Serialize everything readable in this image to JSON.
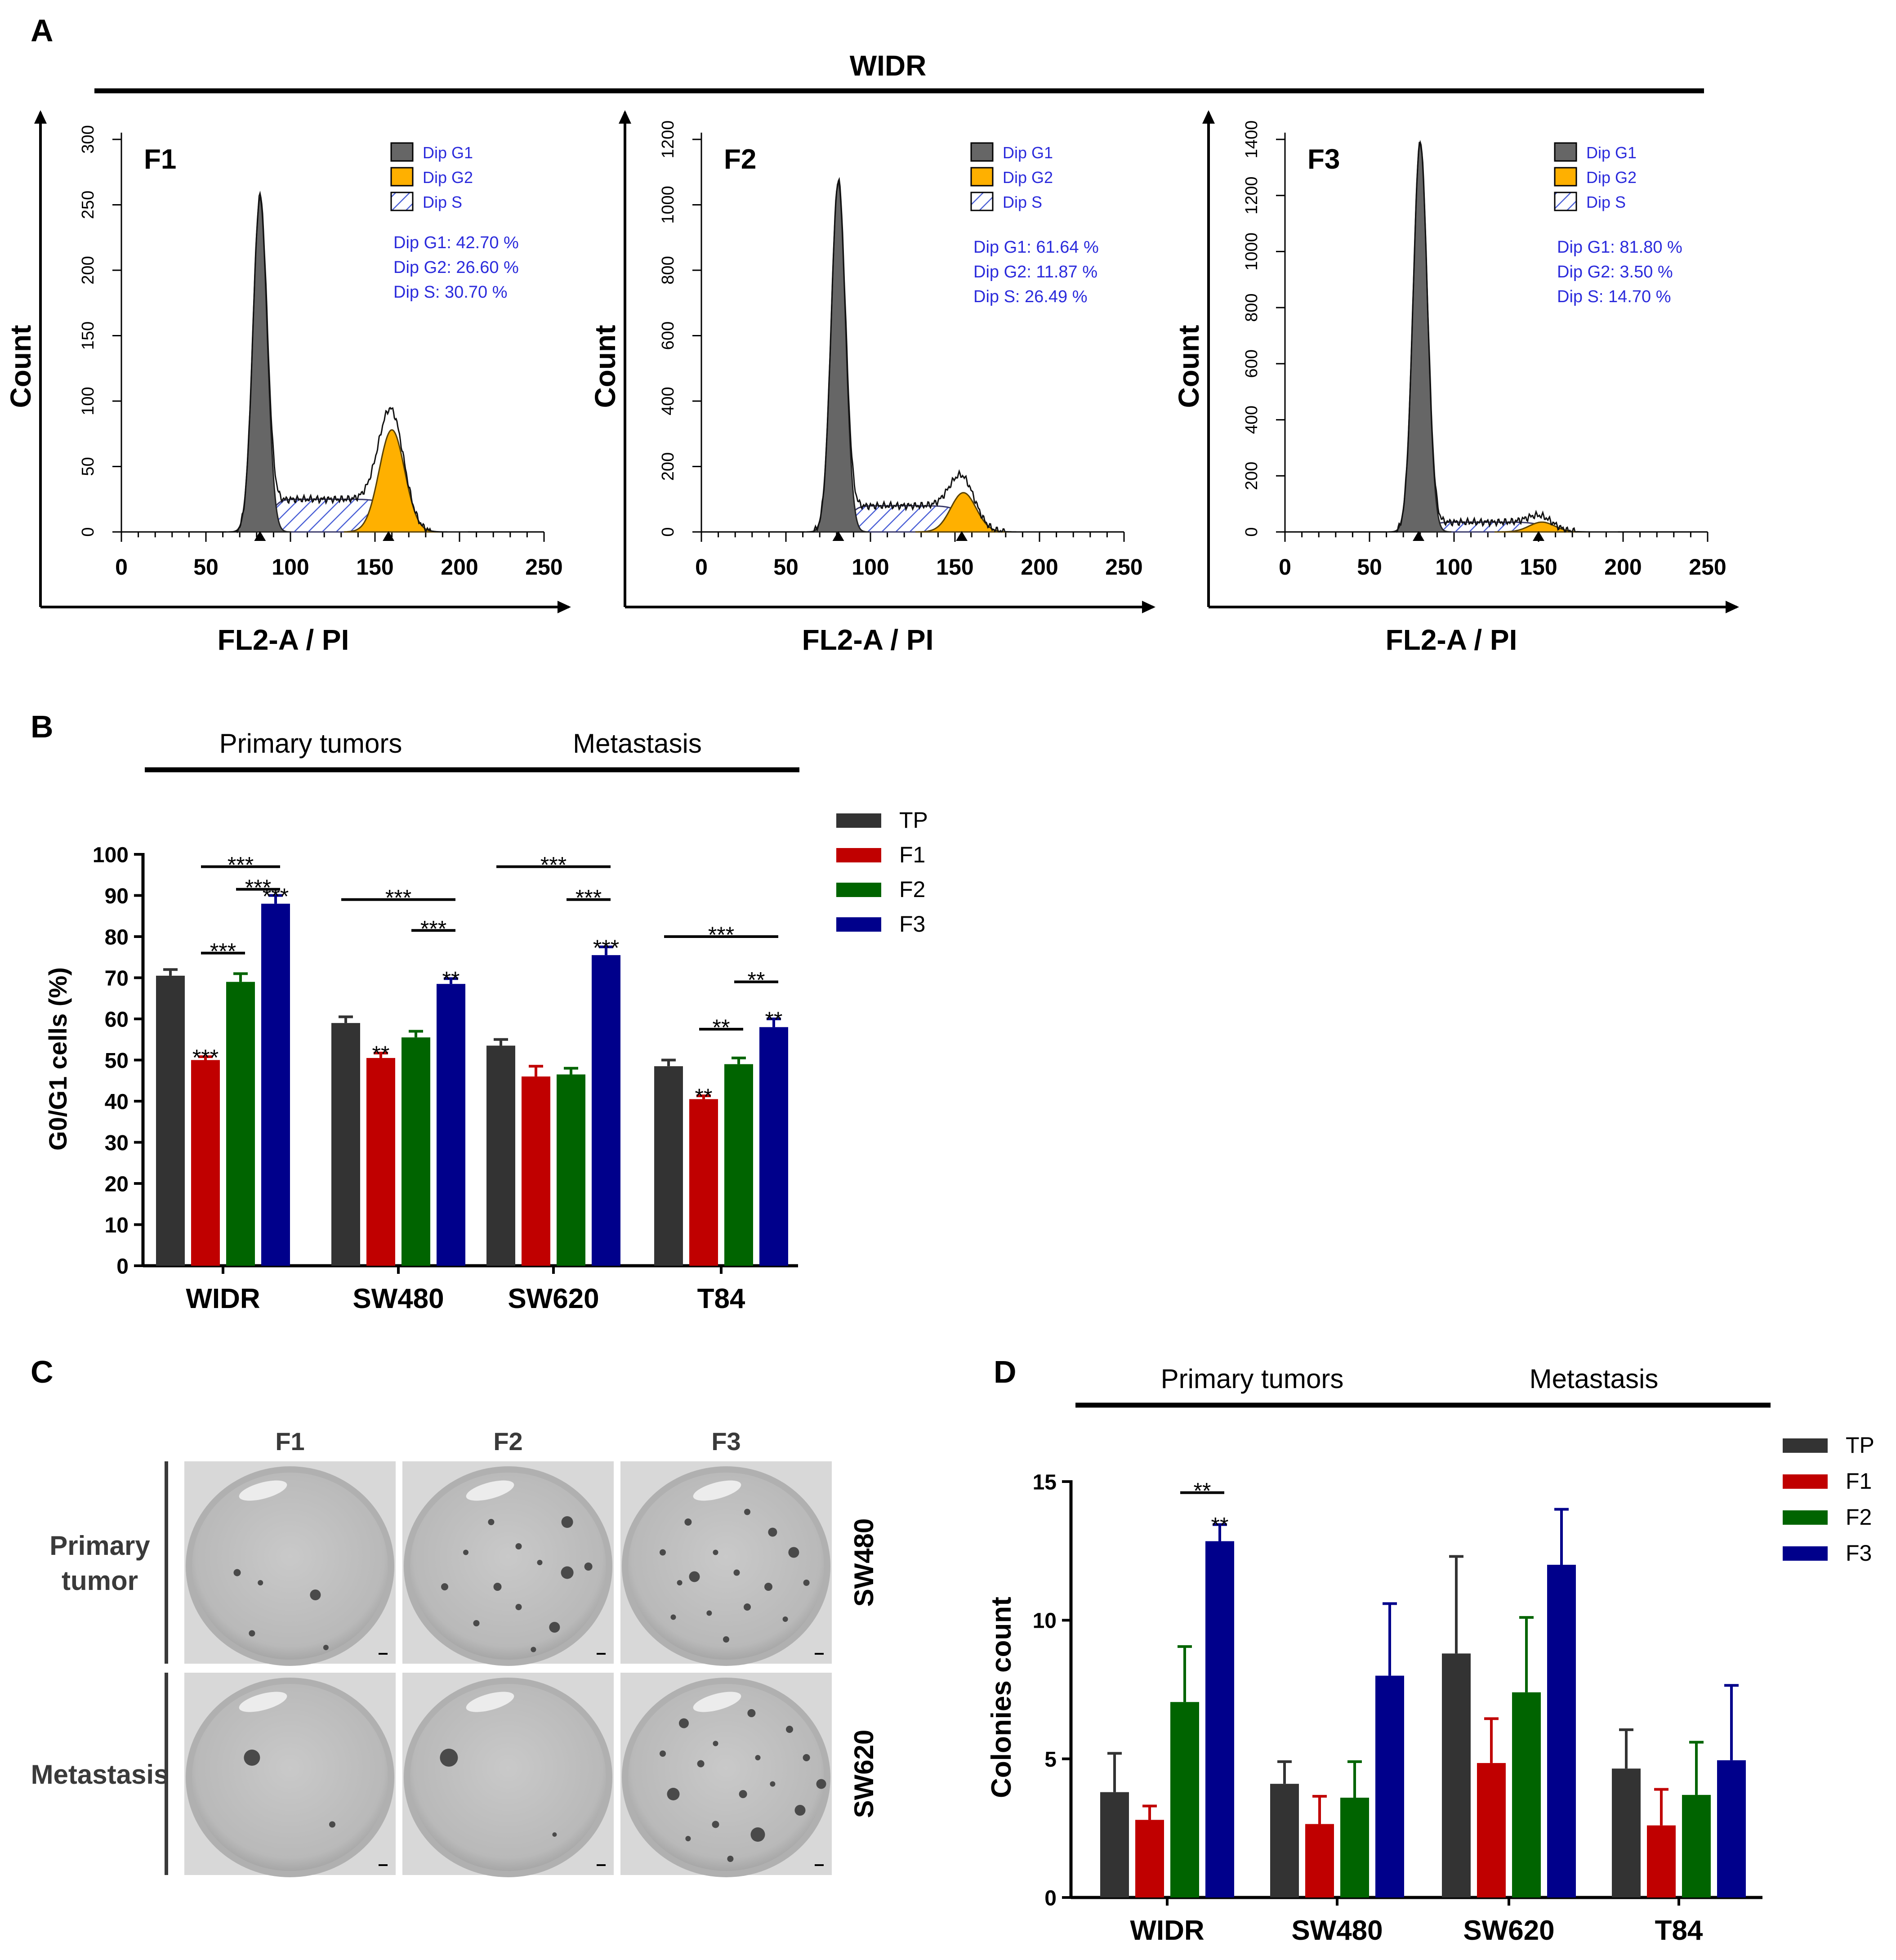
{
  "panels": {
    "a": {
      "letter": "A",
      "title": "WIDR"
    },
    "b": {
      "letter": "B"
    },
    "c": {
      "letter": "C"
    },
    "d": {
      "letter": "D"
    }
  },
  "chart_data": [
    {
      "type": "histogram",
      "panel": "A",
      "name": "F1",
      "xlabel": "FL2-A / PI",
      "ylabel": "Count",
      "xlim": [
        0,
        250
      ],
      "ylim": [
        0,
        300
      ],
      "xticks": [
        0,
        50,
        100,
        150,
        200,
        250
      ],
      "yticks": [
        0,
        50,
        100,
        150,
        200,
        250,
        300
      ],
      "legend": [
        "Dip G1",
        "Dip G2",
        "Dip S"
      ],
      "stats": [
        "Dip G1: 42.70 %",
        "Dip G2: 26.60 %",
        "Dip S: 30.70 %"
      ],
      "g1_peak": [
        82,
        255
      ],
      "g2_peak": [
        160,
        78
      ],
      "s_level": 25,
      "markers": [
        82,
        158
      ],
      "colors": {
        "g1": "#666666",
        "g2": "#ffb000",
        "s": "#4a5fd6"
      }
    },
    {
      "type": "histogram",
      "panel": "A",
      "name": "F2",
      "xlabel": "FL2-A / PI",
      "ylabel": "Count",
      "xlim": [
        0,
        250
      ],
      "ylim": [
        0,
        1200
      ],
      "xticks": [
        0,
        50,
        100,
        150,
        200,
        250
      ],
      "yticks": [
        0,
        200,
        400,
        600,
        800,
        1000,
        1200
      ],
      "legend": [
        "Dip G1",
        "Dip G2",
        "Dip S"
      ],
      "stats": [
        "Dip G1: 61.64 %",
        "Dip G2: 11.87 %",
        "Dip S: 26.49 %"
      ],
      "g1_peak": [
        81,
        1070
      ],
      "g2_peak": [
        155,
        120
      ],
      "s_level": 80,
      "markers": [
        81,
        154
      ],
      "colors": {
        "g1": "#666666",
        "g2": "#ffb000",
        "s": "#4a5fd6"
      }
    },
    {
      "type": "histogram",
      "panel": "A",
      "name": "F3",
      "xlabel": "FL2-A / PI",
      "ylabel": "Count",
      "xlim": [
        0,
        250
      ],
      "ylim": [
        0,
        1400
      ],
      "xticks": [
        0,
        50,
        100,
        150,
        200,
        250
      ],
      "yticks": [
        0,
        200,
        400,
        600,
        800,
        1000,
        1200,
        1400
      ],
      "legend": [
        "Dip G1",
        "Dip G2",
        "Dip S"
      ],
      "stats": [
        "Dip G1: 81.80 %",
        "Dip G2: 3.50 %",
        "Dip S: 14.70 %"
      ],
      "g1_peak": [
        80,
        1390
      ],
      "g2_peak": [
        152,
        35
      ],
      "s_level": 35,
      "markers": [
        79,
        150
      ],
      "colors": {
        "g1": "#666666",
        "g2": "#ffb000",
        "s": "#4a5fd6"
      }
    },
    {
      "type": "bar",
      "panel": "B",
      "categories": [
        "WIDR",
        "SW480",
        "SW620",
        "T84"
      ],
      "series": [
        {
          "name": "TP",
          "values": [
            70.5,
            59,
            53.5,
            48.5
          ],
          "errors": [
            1.5,
            1.5,
            1.5,
            1.5
          ]
        },
        {
          "name": "F1",
          "values": [
            50,
            50.5,
            46,
            40.5
          ],
          "errors": [
            0.8,
            1.2,
            2.5,
            0.8
          ]
        },
        {
          "name": "F2",
          "values": [
            69,
            55.5,
            46.5,
            49
          ],
          "errors": [
            2,
            1.5,
            1.5,
            1.5
          ]
        },
        {
          "name": "F3",
          "values": [
            88,
            68.5,
            75.5,
            58
          ],
          "errors": [
            2,
            1.3,
            2,
            2
          ]
        }
      ],
      "ylabel": "G0/G1 cells (%)",
      "ylim": [
        0,
        100
      ],
      "yticks": [
        0,
        10,
        20,
        30,
        40,
        50,
        60,
        70,
        80,
        90,
        100
      ],
      "groups": [
        {
          "label": "Primary tumors",
          "categories": [
            "WIDR",
            "SW480"
          ]
        },
        {
          "label": "Metastasis",
          "categories": [
            "SW620",
            "T84"
          ]
        }
      ],
      "bar_stars": [
        {
          "category": "WIDR",
          "series": "F1",
          "text": "***"
        },
        {
          "category": "WIDR",
          "series": "F3",
          "text": "***"
        },
        {
          "category": "SW480",
          "series": "F1",
          "text": "**"
        },
        {
          "category": "SW480",
          "series": "F3",
          "text": "**"
        },
        {
          "category": "SW620",
          "series": "F3",
          "text": "***"
        },
        {
          "category": "T84",
          "series": "F1",
          "text": "**"
        },
        {
          "category": "T84",
          "series": "F3",
          "text": "**"
        }
      ],
      "brackets": [
        {
          "category": "WIDR",
          "from": "F1",
          "to": "F3",
          "y": 97,
          "text": "***"
        },
        {
          "category": "WIDR",
          "from": "F2",
          "to": "F3",
          "y": 91.5,
          "text": "***"
        },
        {
          "category": "WIDR",
          "from": "F1",
          "to": "F2",
          "y": 76,
          "text": "***"
        },
        {
          "category": "SW480",
          "from": "TP",
          "to": "F3",
          "y": 89,
          "text": "***"
        },
        {
          "category": "SW480",
          "from": "F2",
          "to": "F3",
          "y": 81.5,
          "text": "***"
        },
        {
          "category": "SW620",
          "from": "TP",
          "to": "F3",
          "y": 97,
          "text": "***"
        },
        {
          "category": "SW620",
          "from": "F2",
          "to": "F3",
          "y": 89,
          "text": "***"
        },
        {
          "category": "T84",
          "from": "TP",
          "to": "F3",
          "y": 80,
          "text": "***"
        },
        {
          "category": "T84",
          "from": "F2",
          "to": "F3",
          "y": 69,
          "text": "**"
        },
        {
          "category": "T84",
          "from": "F1",
          "to": "F2",
          "y": 57.5,
          "text": "**"
        }
      ],
      "legend_position": "right",
      "colors": {
        "TP": "#333333",
        "F1": "#c00000",
        "F2": "#006400",
        "F3": "#00008b"
      }
    },
    {
      "type": "bar",
      "panel": "D",
      "categories": [
        "WIDR",
        "SW480",
        "SW620",
        "T84"
      ],
      "series": [
        {
          "name": "TP",
          "values": [
            3.8,
            4.1,
            8.8,
            4.65
          ],
          "errors": [
            1.4,
            0.8,
            3.5,
            1.4
          ]
        },
        {
          "name": "F1",
          "values": [
            2.8,
            2.65,
            4.85,
            2.6
          ],
          "errors": [
            0.5,
            1.0,
            1.6,
            1.3
          ]
        },
        {
          "name": "F2",
          "values": [
            7.05,
            3.6,
            7.4,
            3.7
          ],
          "errors": [
            2,
            1.3,
            2.7,
            1.9
          ]
        },
        {
          "name": "F3",
          "values": [
            12.85,
            8,
            12,
            4.95
          ],
          "errors": [
            0.6,
            2.6,
            2,
            2.7
          ]
        }
      ],
      "ylabel": "Colonies count",
      "ylim": [
        0,
        15
      ],
      "yticks": [
        0,
        5,
        10,
        15
      ],
      "groups": [
        {
          "label": "Primary tumors",
          "categories": [
            "WIDR",
            "SW480"
          ]
        },
        {
          "label": "Metastasis",
          "categories": [
            "SW620",
            "T84"
          ]
        }
      ],
      "bar_stars": [
        {
          "category": "WIDR",
          "series": "F3",
          "text": "**"
        }
      ],
      "brackets": [
        {
          "category": "WIDR",
          "from": "F2",
          "to": "F3",
          "y": 14.6,
          "text": "**"
        }
      ],
      "legend_position": "right",
      "colors": {
        "TP": "#333333",
        "F1": "#c00000",
        "F2": "#006400",
        "F3": "#00008b"
      }
    }
  ],
  "panel_c": {
    "columns": [
      "F1",
      "F2",
      "F3"
    ],
    "rows": [
      {
        "label_lines": [
          "Primary",
          "tumor"
        ],
        "cell_line": "SW480",
        "colonies": [
          [
            [
              0.25,
              0.55,
              8
            ],
            [
              0.36,
              0.6,
              6
            ],
            [
              0.62,
              0.66,
              12
            ],
            [
              0.32,
              0.85,
              7
            ],
            [
              0.67,
              0.92,
              6
            ]
          ],
          [
            [
              0.42,
              0.3,
              7
            ],
            [
              0.78,
              0.3,
              13
            ],
            [
              0.3,
              0.45,
              6
            ],
            [
              0.55,
              0.42,
              7
            ],
            [
              0.65,
              0.5,
              6
            ],
            [
              0.2,
              0.62,
              8
            ],
            [
              0.45,
              0.62,
              9
            ],
            [
              0.78,
              0.55,
              14
            ],
            [
              0.88,
              0.52,
              9
            ],
            [
              0.55,
              0.72,
              7
            ],
            [
              0.72,
              0.82,
              12
            ],
            [
              0.62,
              0.93,
              6
            ],
            [
              0.35,
              0.8,
              7
            ]
          ],
          [
            [
              0.32,
              0.3,
              8
            ],
            [
              0.6,
              0.25,
              7
            ],
            [
              0.72,
              0.35,
              10
            ],
            [
              0.2,
              0.45,
              7
            ],
            [
              0.45,
              0.45,
              6
            ],
            [
              0.82,
              0.45,
              12
            ],
            [
              0.28,
              0.6,
              6
            ],
            [
              0.35,
              0.57,
              12
            ],
            [
              0.55,
              0.55,
              7
            ],
            [
              0.7,
              0.62,
              9
            ],
            [
              0.88,
              0.6,
              7
            ],
            [
              0.42,
              0.75,
              6
            ],
            [
              0.6,
              0.72,
              8
            ],
            [
              0.78,
              0.78,
              6
            ],
            [
              0.5,
              0.88,
              7
            ],
            [
              0.25,
              0.77,
              6
            ]
          ]
        ]
      },
      {
        "label_lines": [
          "Metastasis"
        ],
        "cell_line": "SW620",
        "colonies": [
          [
            [
              0.32,
              0.42,
              18
            ],
            [
              0.7,
              0.75,
              7
            ]
          ],
          [
            [
              0.22,
              0.42,
              20
            ],
            [
              0.72,
              0.8,
              5
            ]
          ],
          [
            [
              0.3,
              0.25,
              11
            ],
            [
              0.62,
              0.2,
              9
            ],
            [
              0.8,
              0.28,
              8
            ],
            [
              0.2,
              0.4,
              7
            ],
            [
              0.45,
              0.35,
              6
            ],
            [
              0.38,
              0.45,
              8
            ],
            [
              0.65,
              0.42,
              6
            ],
            [
              0.88,
              0.42,
              8
            ],
            [
              0.25,
              0.6,
              14
            ],
            [
              0.58,
              0.6,
              9
            ],
            [
              0.72,
              0.55,
              6
            ],
            [
              0.45,
              0.75,
              8
            ],
            [
              0.65,
              0.8,
              16
            ],
            [
              0.85,
              0.68,
              12
            ],
            [
              0.32,
              0.82,
              6
            ],
            [
              0.52,
              0.92,
              7
            ],
            [
              0.95,
              0.55,
              11
            ]
          ]
        ]
      }
    ]
  }
}
